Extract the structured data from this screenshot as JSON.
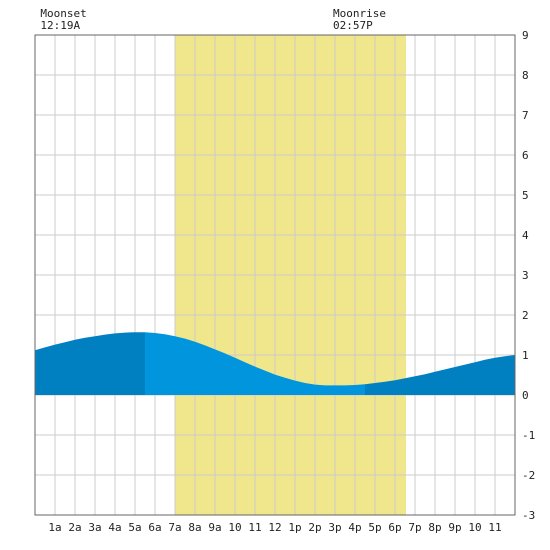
{
  "chart_data": {
    "type": "area",
    "title": "",
    "xlabel": "",
    "ylabel": "",
    "x_tick_labels": [
      "1a",
      "2a",
      "3a",
      "4a",
      "5a",
      "6a",
      "7a",
      "8a",
      "9a",
      "10",
      "11",
      "12",
      "1p",
      "2p",
      "3p",
      "4p",
      "5p",
      "6p",
      "7p",
      "8p",
      "9p",
      "10",
      "11"
    ],
    "xlim": [
      0,
      24
    ],
    "ylim": [
      -3,
      9
    ],
    "y_ticks": [
      -3,
      -2,
      -1,
      0,
      1,
      2,
      3,
      4,
      5,
      6,
      7,
      8,
      9
    ],
    "grid": true,
    "daylight": {
      "start": 7.0,
      "end": 18.55
    },
    "moon_events": [
      {
        "label": "Moonset",
        "time_label": "12:19A",
        "time": 0.32
      },
      {
        "label": "Moonrise",
        "time_label": "02:57P",
        "time": 14.95
      }
    ],
    "series": [
      {
        "x": [
          0,
          0.5,
          1,
          1.5,
          2,
          2.5,
          3,
          3.5,
          4,
          4.5,
          5,
          5.5,
          6,
          6.5,
          7,
          7.5,
          8,
          8.5,
          9,
          9.5,
          10,
          10.5,
          11,
          11.5,
          12,
          12.5,
          13,
          13.5,
          14,
          14.5,
          15,
          15.5,
          16,
          16.5,
          17,
          17.5,
          18,
          18.5,
          19,
          19.5,
          20,
          20.5,
          21,
          21.5,
          22,
          22.5,
          23,
          23.5,
          24
        ],
        "values": [
          1.12,
          1.19,
          1.26,
          1.32,
          1.38,
          1.43,
          1.47,
          1.51,
          1.54,
          1.56,
          1.57,
          1.57,
          1.55,
          1.52,
          1.47,
          1.41,
          1.33,
          1.24,
          1.14,
          1.04,
          0.93,
          0.82,
          0.71,
          0.61,
          0.51,
          0.43,
          0.36,
          0.3,
          0.26,
          0.24,
          0.24,
          0.24,
          0.25,
          0.27,
          0.3,
          0.33,
          0.37,
          0.42,
          0.47,
          0.52,
          0.58,
          0.64,
          0.7,
          0.76,
          0.82,
          0.88,
          0.93,
          0.97,
          1.0
        ]
      }
    ],
    "colors": {
      "daylight": "#f0e68c",
      "tide_day": "#0095dc",
      "tide_night": "#0080c0",
      "grid": "#cccccc",
      "axis": "#666666"
    }
  }
}
